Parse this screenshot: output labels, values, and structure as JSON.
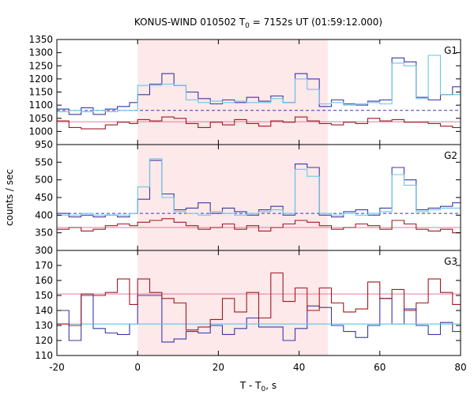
{
  "chart_data": {
    "type": "line",
    "title_prefix": "KONUS-WIND 010502 T",
    "title_sub": "0",
    "title_suffix": " = 7152s UT (01:59:12.000)",
    "xlabel_prefix": "T - T",
    "xlabel_sub": "0",
    "xlabel_suffix": ", s",
    "ylabel": "counts / sec",
    "xlim": [
      -20,
      80
    ],
    "x_ticks": [
      -20,
      0,
      20,
      40,
      60,
      80
    ],
    "highlight_interval": [
      0,
      47.1
    ],
    "colors": {
      "blue": "#3a38a8",
      "cyan": "#66c8e8",
      "red": "#a01a22",
      "pink": "#e87aa0",
      "highlight": "#fde8ea"
    },
    "panels": [
      {
        "name": "G1",
        "ylim": [
          950,
          1350
        ],
        "y_ticks": [
          950,
          1000,
          1050,
          1100,
          1150,
          1200,
          1250,
          1300,
          1350
        ],
        "background_level": 1080,
        "dark_background_level": 1037,
        "series": [
          {
            "style": "step-blue",
            "edges": [
              -20,
              -17,
              -14,
              -11,
              -8,
              -5,
              -2,
              0,
              3,
              6,
              9,
              12,
              15,
              18,
              21,
              24,
              27,
              30,
              33,
              36,
              39,
              42,
              45,
              48,
              51,
              54,
              57,
              60,
              63,
              66,
              69,
              72,
              75,
              78,
              81
            ],
            "values": [
              1085,
              1065,
              1090,
              1065,
              1085,
              1095,
              1110,
              1140,
              1180,
              1220,
              1175,
              1150,
              1125,
              1105,
              1120,
              1110,
              1130,
              1115,
              1135,
              1110,
              1220,
              1200,
              1095,
              1120,
              1105,
              1100,
              1115,
              1120,
              1280,
              1265,
              1130,
              1120,
              1140,
              1170
            ]
          },
          {
            "style": "step-cyan",
            "edges": [
              -20,
              -17,
              -14,
              -11,
              -8,
              -5,
              -2,
              0,
              3,
              6,
              9,
              12,
              15,
              18,
              21,
              24,
              27,
              30,
              33,
              36,
              39,
              42,
              45,
              48,
              51,
              54,
              57,
              60,
              63,
              66,
              69,
              72,
              75,
              78,
              81
            ],
            "values": [
              1075,
              1080,
              1075,
              1080,
              1075,
              1080,
              1080,
              1175,
              1175,
              1180,
              1175,
              1120,
              1110,
              1115,
              1110,
              1115,
              1110,
              1110,
              1125,
              1110,
              1200,
              1160,
              1105,
              1110,
              1100,
              1105,
              1110,
              1105,
              1260,
              1250,
              1125,
              1290,
              1140,
              1140
            ]
          },
          {
            "style": "step-red",
            "edges": [
              -20,
              -17,
              -14,
              -11,
              -8,
              -5,
              -2,
              0,
              3,
              6,
              9,
              12,
              15,
              18,
              21,
              24,
              27,
              30,
              33,
              36,
              39,
              42,
              45,
              48,
              51,
              54,
              57,
              60,
              63,
              66,
              69,
              72,
              75,
              78,
              81
            ],
            "values": [
              1040,
              1015,
              1010,
              1010,
              1025,
              1035,
              1030,
              1045,
              1040,
              1055,
              1050,
              1030,
              1015,
              1035,
              1025,
              1045,
              1030,
              1020,
              1040,
              1035,
              1055,
              1040,
              1030,
              1025,
              1035,
              1030,
              1050,
              1040,
              1045,
              1035,
              1035,
              1030,
              1020,
              1015
            ]
          }
        ]
      },
      {
        "name": "G2",
        "ylim": [
          300,
          600
        ],
        "y_ticks": [
          300,
          350,
          400,
          450,
          500,
          550
        ],
        "background_level": 405,
        "dark_background_level": 365,
        "series": [
          {
            "style": "step-blue",
            "edges": [
              -20,
              -17,
              -14,
              -11,
              -8,
              -5,
              -2,
              0,
              3,
              6,
              9,
              12,
              15,
              18,
              21,
              24,
              27,
              30,
              33,
              36,
              39,
              42,
              45,
              48,
              51,
              54,
              57,
              60,
              63,
              66,
              69,
              72,
              75,
              78,
              81
            ],
            "values": [
              405,
              395,
              400,
              395,
              400,
              395,
              405,
              445,
              555,
              460,
              415,
              420,
              435,
              405,
              420,
              410,
              400,
              415,
              425,
              400,
              545,
              535,
              400,
              395,
              410,
              415,
              400,
              420,
              535,
              500,
              415,
              420,
              425,
              435
            ]
          },
          {
            "style": "step-cyan",
            "edges": [
              -20,
              -17,
              -14,
              -11,
              -8,
              -5,
              -2,
              0,
              3,
              6,
              9,
              12,
              15,
              18,
              21,
              24,
              27,
              30,
              33,
              36,
              39,
              42,
              45,
              48,
              51,
              54,
              57,
              60,
              63,
              66,
              69,
              72,
              75,
              78,
              81
            ],
            "values": [
              400,
              400,
              405,
              400,
              400,
              400,
              405,
              480,
              560,
              450,
              410,
              405,
              400,
              410,
              405,
              400,
              405,
              410,
              415,
              405,
              530,
              510,
              405,
              400,
              405,
              400,
              405,
              410,
              515,
              485,
              410,
              415,
              420,
              420
            ]
          },
          {
            "style": "step-red",
            "edges": [
              -20,
              -17,
              -14,
              -11,
              -8,
              -5,
              -2,
              0,
              3,
              6,
              9,
              12,
              15,
              18,
              21,
              24,
              27,
              30,
              33,
              36,
              39,
              42,
              45,
              48,
              51,
              54,
              57,
              60,
              63,
              66,
              69,
              72,
              75,
              78,
              81
            ],
            "values": [
              360,
              365,
              355,
              360,
              370,
              375,
              370,
              380,
              385,
              390,
              380,
              370,
              360,
              365,
              375,
              360,
              370,
              355,
              365,
              375,
              385,
              380,
              370,
              360,
              365,
              375,
              370,
              360,
              385,
              375,
              360,
              355,
              360,
              350
            ]
          }
        ]
      },
      {
        "name": "G3",
        "ylim": [
          110,
          180
        ],
        "y_ticks": [
          110,
          120,
          130,
          140,
          150,
          160,
          170
        ],
        "background_level": 131,
        "dark_background_level": 151,
        "series": [
          {
            "style": "step-blue",
            "edges": [
              -20,
              -17,
              -14,
              -11,
              -8,
              -5,
              -2,
              0,
              3,
              6,
              9,
              12,
              15,
              18,
              21,
              24,
              27,
              30,
              33,
              36,
              39,
              42,
              45,
              48,
              51,
              54,
              57,
              60,
              63,
              66,
              69,
              72,
              75,
              78,
              81
            ],
            "values": [
              140,
              120,
              150,
              128,
              125,
              124,
              131,
              150,
              150,
              119,
              121,
              126,
              125,
              130,
              124,
              128,
              135,
              129,
              129,
              120,
              128,
              143,
              142,
              130,
              126,
              122,
              130,
              148,
              131,
              141,
              130,
              124,
              132,
              126
            ]
          },
          {
            "style": "step-cyan",
            "edges": [
              -20,
              -17,
              -14,
              -11,
              -8,
              -5,
              -2,
              0,
              3,
              6,
              9,
              12,
              15,
              18,
              21,
              24,
              27,
              30,
              33,
              36,
              39,
              42,
              45,
              48,
              51,
              54,
              57,
              60,
              63,
              66,
              69,
              72,
              75,
              78,
              81
            ],
            "values": [
              131,
              131,
              131,
              131,
              131,
              131,
              131,
              131,
              131,
              131,
              131,
              131,
              131,
              131,
              131,
              131,
              131,
              131,
              131,
              131,
              131,
              131,
              131,
              131,
              131,
              131,
              131,
              131,
              131,
              131,
              131,
              131,
              131,
              131
            ]
          },
          {
            "style": "step-red",
            "edges": [
              -20,
              -17,
              -14,
              -11,
              -8,
              -5,
              -2,
              0,
              3,
              6,
              9,
              12,
              15,
              18,
              21,
              24,
              27,
              30,
              33,
              36,
              39,
              42,
              45,
              48,
              51,
              54,
              57,
              60,
              63,
              66,
              69,
              72,
              75,
              78,
              81
            ],
            "values": [
              131,
              130,
              151,
              150,
              152,
              161,
              144,
              161,
              152,
              148,
              145,
              127,
              129,
              134,
              148,
              139,
              152,
              135,
              165,
              146,
              155,
              140,
              155,
              145,
              139,
              141,
              159,
              148,
              154,
              140,
              145,
              161,
              152,
              144
            ]
          }
        ]
      }
    ]
  }
}
